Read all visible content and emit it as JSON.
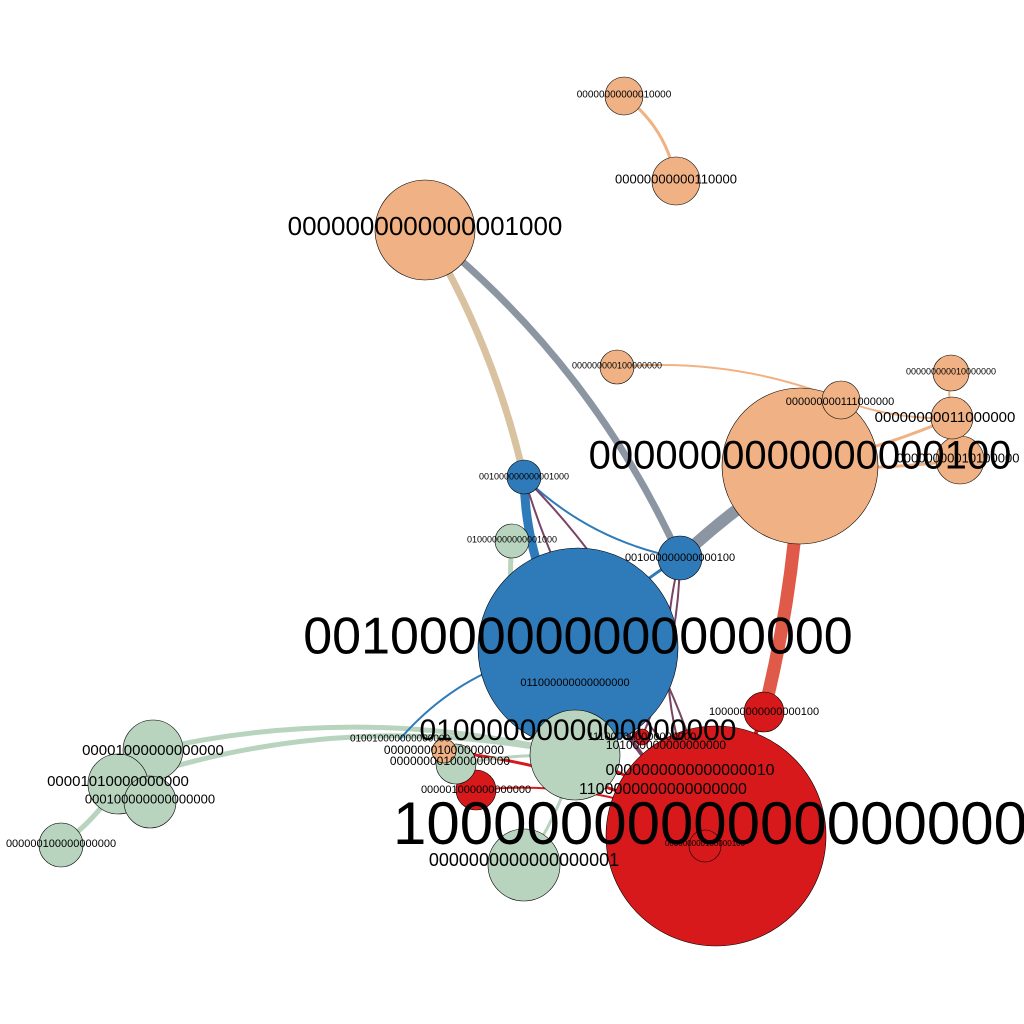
{
  "colors": {
    "blue": "#2f7ab9",
    "red": "#d7191c",
    "peach": "#f0b284",
    "sage": "#b8d4be",
    "gray": "#8c96a3",
    "salmon": "#e05a4a",
    "tan": "#d9c2a0",
    "plum": "#7a4464"
  },
  "nodes": [
    {
      "id": "n1",
      "label": "0010000000000000000",
      "color": "blue"
    },
    {
      "id": "n2",
      "label": "1000000000000000000",
      "color": "red"
    },
    {
      "id": "n3",
      "label": "0000000000000000100",
      "color": "peach"
    },
    {
      "id": "n4",
      "label": "0000000000000001000",
      "color": "peach"
    },
    {
      "id": "n5",
      "label": "0100000000000000000",
      "color": "sage"
    },
    {
      "id": "n6",
      "label": "0000000000000000001",
      "color": "sage"
    },
    {
      "id": "n7",
      "label": "00000000000010000",
      "color": "peach"
    },
    {
      "id": "n8",
      "label": "00000000000110000",
      "color": "peach"
    },
    {
      "id": "n9",
      "label": "000000000100000000",
      "color": "peach"
    },
    {
      "id": "n10",
      "label": "000000000010000000",
      "color": "peach"
    },
    {
      "id": "n11",
      "label": "000000000111000000",
      "color": "peach"
    },
    {
      "id": "n12",
      "label": "00000000011000000",
      "color": "peach"
    },
    {
      "id": "n13",
      "label": "00000000010100000",
      "color": "peach"
    },
    {
      "id": "n14",
      "label": "001000000000001000",
      "color": "blue"
    },
    {
      "id": "n15",
      "label": "010000000000001000",
      "color": "sage"
    },
    {
      "id": "n16",
      "label": "001000000000000100",
      "color": "blue"
    },
    {
      "id": "n17",
      "label": "011000000000000000",
      "color": "blue"
    },
    {
      "id": "n18",
      "label": "100000000000000100",
      "color": "red"
    },
    {
      "id": "n19",
      "label": "0000000000000000010",
      "color": "red"
    },
    {
      "id": "n20",
      "label": "1100000000000000000",
      "color": "red"
    },
    {
      "id": "n21",
      "label": "101000000000000000",
      "color": "red"
    },
    {
      "id": "n22",
      "label": "111000000000000000",
      "color": "red"
    },
    {
      "id": "n23",
      "label": "000001000000000000",
      "color": "red"
    },
    {
      "id": "n24",
      "label": "000000000100000100",
      "color": "red"
    },
    {
      "id": "n25",
      "label": "010010000000000000",
      "color": "sage"
    },
    {
      "id": "n26",
      "label": "000000001000000000",
      "color": "peach"
    },
    {
      "id": "n27",
      "label": "000000001000000000",
      "color": "sage"
    },
    {
      "id": "n28",
      "label": "00001000000000000",
      "color": "sage"
    },
    {
      "id": "n29",
      "label": "00001010000000000",
      "color": "sage"
    },
    {
      "id": "n30",
      "label": "000100000000000000",
      "color": "sage"
    },
    {
      "id": "n31",
      "label": "000000100000000000",
      "color": "sage"
    }
  ],
  "edges": [
    {
      "from": "n4",
      "to": "n14",
      "color": "tan"
    },
    {
      "from": "n4",
      "to": "n16",
      "color": "gray"
    },
    {
      "from": "n7",
      "to": "n8",
      "color": "peach"
    },
    {
      "from": "n9",
      "to": "n11",
      "color": "peach"
    },
    {
      "from": "n11",
      "to": "n12",
      "color": "peach"
    },
    {
      "from": "n3",
      "to": "n12",
      "color": "peach"
    },
    {
      "from": "n3",
      "to": "n13",
      "color": "peach"
    },
    {
      "from": "n10",
      "to": "n12",
      "color": "peach"
    },
    {
      "from": "n3",
      "to": "n16",
      "color": "gray"
    },
    {
      "from": "n3",
      "to": "n18",
      "color": "salmon"
    },
    {
      "from": "n14",
      "to": "n1",
      "color": "blue"
    },
    {
      "from": "n14",
      "to": "n16",
      "color": "blue"
    },
    {
      "from": "n14",
      "to": "n2",
      "color": "plum"
    },
    {
      "from": "n14",
      "to": "n21",
      "color": "plum"
    },
    {
      "from": "n16",
      "to": "n1",
      "color": "blue"
    },
    {
      "from": "n16",
      "to": "n2",
      "color": "plum"
    },
    {
      "from": "n16",
      "to": "n22",
      "color": "plum"
    },
    {
      "from": "n15",
      "to": "n5",
      "color": "sage"
    },
    {
      "from": "n1",
      "to": "n2",
      "color": "plum"
    },
    {
      "from": "n5",
      "to": "n2",
      "color": "red"
    },
    {
      "from": "n28",
      "to": "n5",
      "color": "sage"
    },
    {
      "from": "n29",
      "to": "n5",
      "color": "sage"
    },
    {
      "from": "n31",
      "to": "n29",
      "color": "sage"
    },
    {
      "from": "n25",
      "to": "n1",
      "color": "blue"
    },
    {
      "from": "n26",
      "to": "n2",
      "color": "red"
    },
    {
      "from": "n27",
      "to": "n5",
      "color": "sage"
    },
    {
      "from": "n23",
      "to": "n2",
      "color": "red"
    },
    {
      "from": "n6",
      "to": "n5",
      "color": "sage"
    },
    {
      "from": "n18",
      "to": "n2",
      "color": "red"
    }
  ]
}
